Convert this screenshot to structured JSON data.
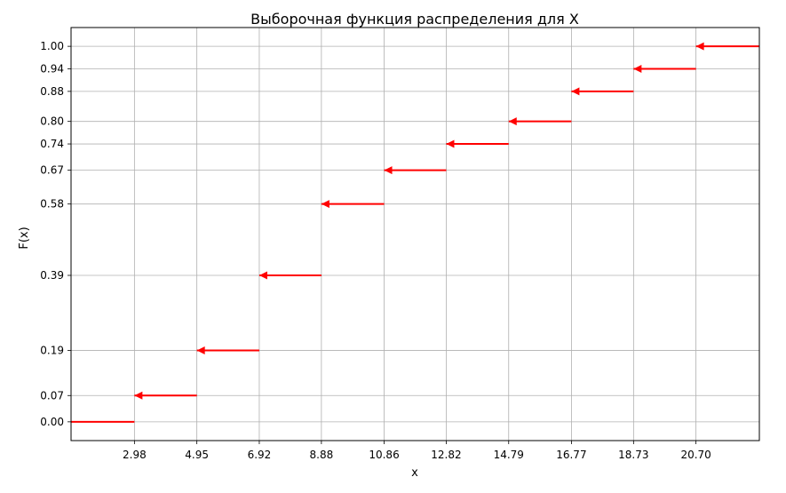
{
  "chart_data": {
    "type": "line",
    "title": "Выборочная функция распределения для X",
    "xlabel": "x",
    "ylabel": "F(x)",
    "xlim": [
      0.98,
      22.7
    ],
    "ylim": [
      -0.05,
      1.05
    ],
    "grid": true,
    "x_ticks": [
      "2.98",
      "4.95",
      "6.92",
      "8.88",
      "10.86",
      "12.82",
      "14.79",
      "16.77",
      "18.73",
      "20.70"
    ],
    "y_ticks": [
      "0.00",
      "0.07",
      "0.19",
      "0.39",
      "0.58",
      "0.67",
      "0.74",
      "0.80",
      "0.88",
      "0.94",
      "1.00"
    ],
    "steps": [
      {
        "x_start": 0.98,
        "x_end": 2.98,
        "y": 0.0,
        "arrow": false
      },
      {
        "x_start": 2.98,
        "x_end": 4.95,
        "y": 0.07,
        "arrow": true
      },
      {
        "x_start": 4.95,
        "x_end": 6.92,
        "y": 0.19,
        "arrow": true
      },
      {
        "x_start": 6.92,
        "x_end": 8.88,
        "y": 0.39,
        "arrow": true
      },
      {
        "x_start": 8.88,
        "x_end": 10.86,
        "y": 0.58,
        "arrow": true
      },
      {
        "x_start": 10.86,
        "x_end": 12.82,
        "y": 0.67,
        "arrow": true
      },
      {
        "x_start": 12.82,
        "x_end": 14.79,
        "y": 0.74,
        "arrow": true
      },
      {
        "x_start": 14.79,
        "x_end": 16.77,
        "y": 0.8,
        "arrow": true
      },
      {
        "x_start": 16.77,
        "x_end": 18.73,
        "y": 0.88,
        "arrow": true
      },
      {
        "x_start": 18.73,
        "x_end": 20.7,
        "y": 0.94,
        "arrow": true
      },
      {
        "x_start": 20.7,
        "x_end": 22.7,
        "y": 1.0,
        "arrow": true
      }
    ],
    "colors": {
      "line": "#ff0000",
      "grid": "#b0b0b0",
      "axes": "#000000"
    }
  }
}
